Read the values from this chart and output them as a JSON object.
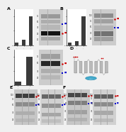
{
  "background_color": "#f0f0f0",
  "panel_labels": [
    "A",
    "B",
    "C",
    "D",
    "E",
    "F"
  ],
  "label_fontsize": 4.5,
  "figure_bg": "#e8e8e8",
  "wb_bg": "#c8c8c8",
  "wb_bg2": "#b0b0b0",
  "band_dark": "#1a1a1a",
  "band_mid": "#555555",
  "band_light": "#888888",
  "bar_color": "#3a3a3a",
  "red_marker": "#cc0000",
  "blue_marker": "#0000cc",
  "gray_line": "#aaaaaa",
  "panel_A_bars": [
    0.08,
    0.18,
    1.0
  ],
  "panel_B_bars": [
    0.1,
    0.15,
    1.0
  ],
  "panel_C_bars": [
    0.12,
    1.0
  ],
  "helix_color": "#bbbbbb",
  "loop_color": "#999999",
  "cyan_color": "#44aacc"
}
